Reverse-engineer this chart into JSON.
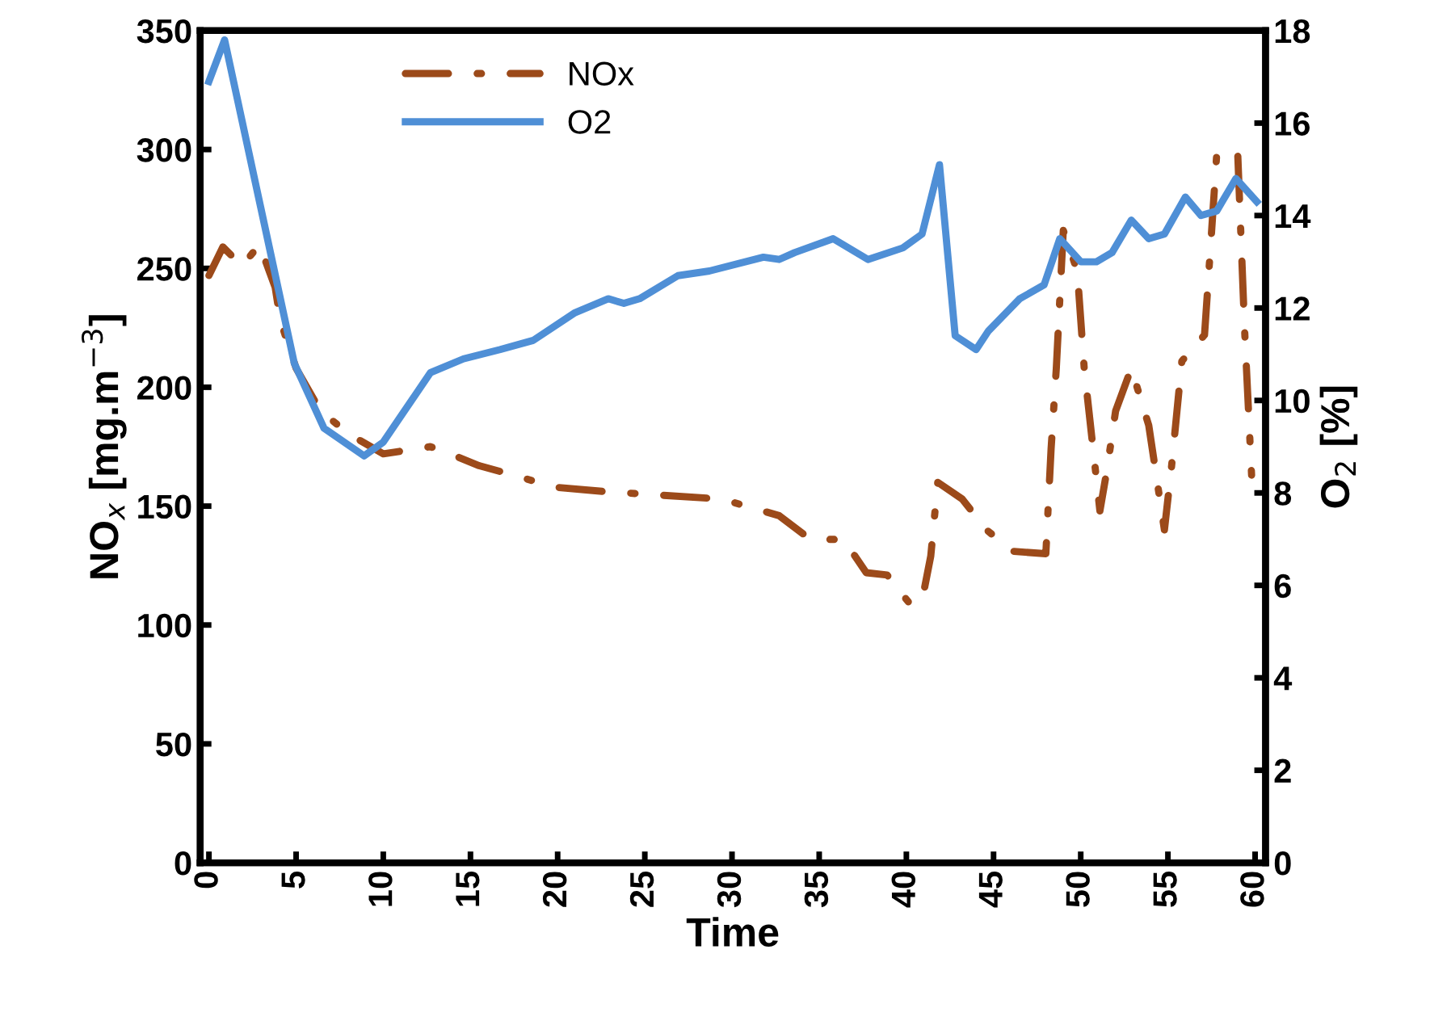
{
  "chart_data": {
    "type": "line",
    "xlabel": "Time",
    "ylabel": "NO$_{x}$ [mg.m$^{−3}$]",
    "y2label": "O$_{2}$ [%]",
    "xlim": [
      -0.5,
      60.6
    ],
    "xticks": [
      0,
      5,
      10,
      15,
      20,
      25,
      30,
      35,
      40,
      45,
      50,
      55,
      60
    ],
    "ylim": [
      0,
      350
    ],
    "yticks": [
      0,
      50,
      100,
      150,
      200,
      250,
      300,
      350
    ],
    "y2lim": [
      0,
      18
    ],
    "y2ticks": [
      0,
      2,
      4,
      6,
      8,
      10,
      12,
      14,
      16,
      18
    ],
    "grid": false,
    "legend": "top",
    "marker": "none",
    "series": [
      {
        "name": "NOx",
        "color": "#9c4a1a",
        "line_style": "dashdot",
        "x": [
          0,
          0.8,
          1.9,
          2.9,
          3.8,
          4.1,
          5,
          6.4,
          8.1,
          10,
          12.7,
          13.5,
          15.5,
          17.5,
          19.8,
          22.9,
          29.4,
          32.7,
          34.5,
          36.4,
          37.7,
          38.9,
          40.3,
          41,
          41.4,
          41.8,
          43.2,
          44.6,
          46.1,
          48,
          48.3,
          48.6,
          49,
          49.8,
          50.2,
          51.1,
          51.5,
          52,
          52.9,
          53.9,
          54.8,
          55.2,
          55.8,
          57.1,
          57.5,
          57.8,
          59,
          59.4,
          59.8
        ],
        "values": [
          247,
          259,
          251,
          260,
          242,
          228,
          208,
          190,
          180,
          172,
          175,
          173,
          167,
          163,
          158,
          156,
          153,
          146,
          136,
          136,
          122,
          121,
          108,
          114,
          129,
          160,
          153,
          140,
          131,
          130,
          174,
          208,
          266,
          249,
          208,
          148,
          165,
          190,
          208,
          184,
          140,
          166,
          211,
          222,
          265,
          298,
          299,
          224,
          163
        ]
      },
      {
        "name": "O2",
        "color": "#4f8fd6",
        "axis": "y2",
        "line_style": "solid",
        "x": [
          0,
          0.9,
          4.9,
          6.6,
          8.9,
          10,
          12.7,
          14.6,
          16.7,
          18.6,
          21,
          22.9,
          23.8,
          24.7,
          26.9,
          28.7,
          31.8,
          32.7,
          33.6,
          35.8,
          37.8,
          39.8,
          40.9,
          41.9,
          42.8,
          44,
          44.7,
          46.5,
          47.9,
          48.8,
          50,
          50.9,
          51.8,
          52.9,
          53.9,
          54.8,
          56,
          56.9,
          57.8,
          58.9,
          60.1
        ],
        "values": [
          16.9,
          17.8,
          10.8,
          9.4,
          8.8,
          9.1,
          10.6,
          10.9,
          11.1,
          11.3,
          11.9,
          12.2,
          12.1,
          12.2,
          12.7,
          12.8,
          13.1,
          13.05,
          13.2,
          13.5,
          13.05,
          13.3,
          13.6,
          15.1,
          11.4,
          11.1,
          11.5,
          12.2,
          12.5,
          13.5,
          13.0,
          13.0,
          13.2,
          13.9,
          13.5,
          13.6,
          14.4,
          14.0,
          14.1,
          14.8,
          14.3
        ]
      }
    ]
  }
}
